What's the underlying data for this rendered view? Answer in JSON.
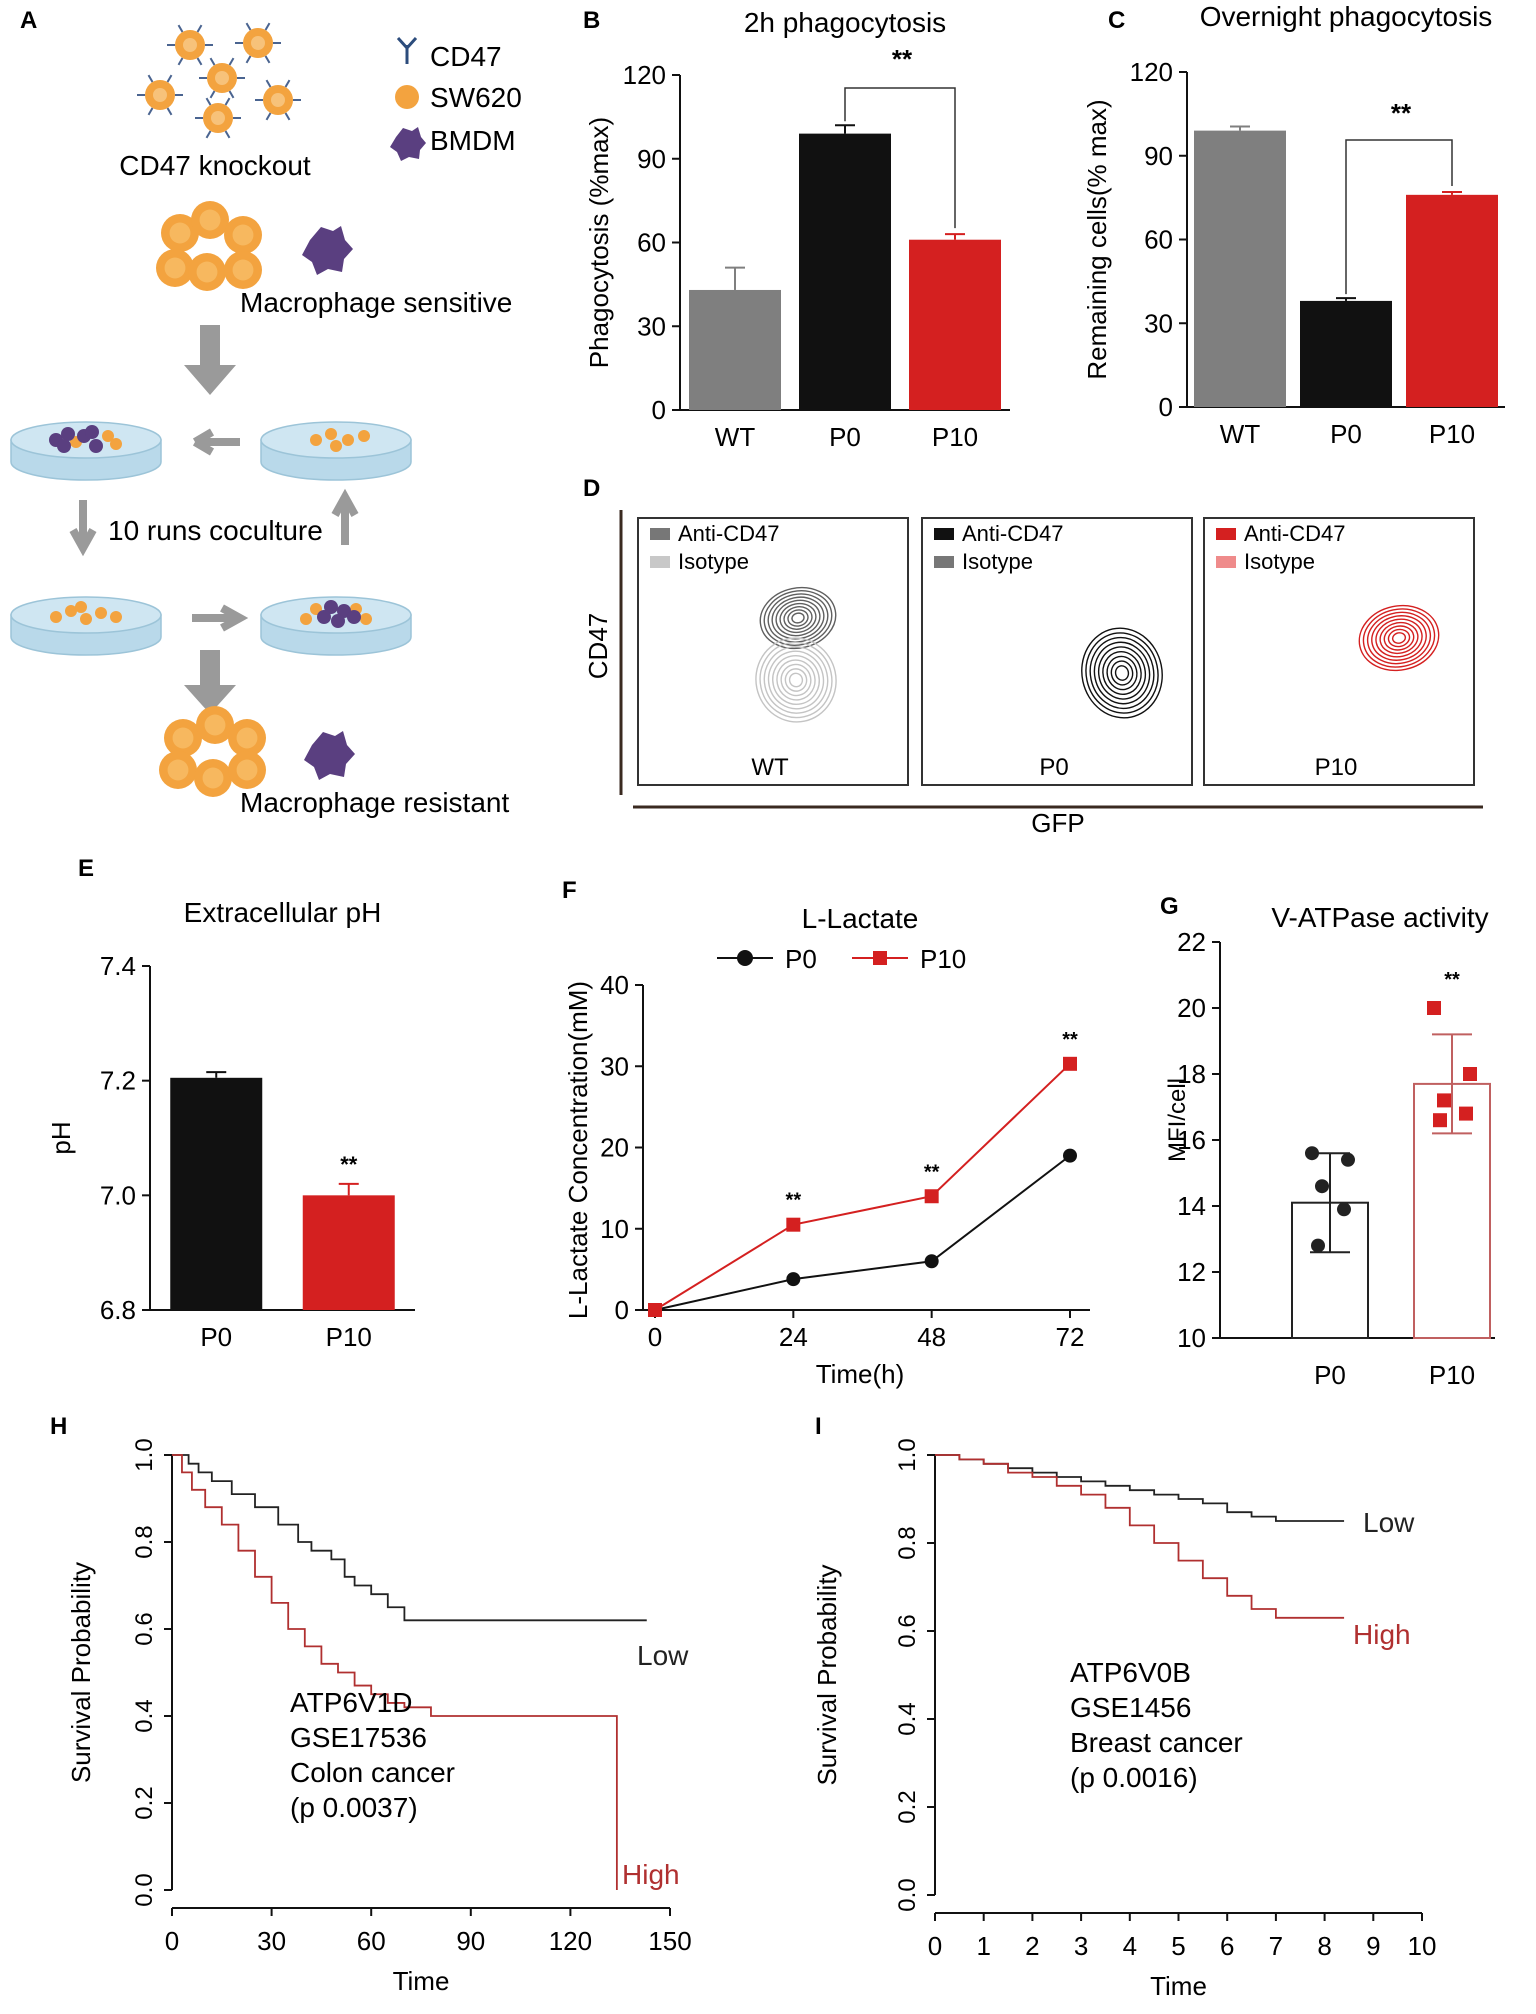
{
  "colors": {
    "gray": "#7f7f7f",
    "black": "#111111",
    "red": "#d42020",
    "lightgray": "#c8c8c8",
    "pink": "#ef8b8b",
    "orange": "#f3a33f",
    "purple": "#5a3f80",
    "dish": "#cfe6f2",
    "arrow": "#9a9a9a"
  },
  "panelA": {
    "letter": "A",
    "title": "CD47 knockout",
    "legend": [
      {
        "label": "CD47",
        "icon": "antibody-icon"
      },
      {
        "label": "SW620",
        "icon": "cell-icon"
      },
      {
        "label": "BMDM",
        "icon": "macrophage-icon"
      }
    ],
    "sensitive": "Macrophage sensitive",
    "coculture": "10 runs coculture",
    "resistant": "Macrophage resistant"
  },
  "chart_data": [
    {
      "panel": "B",
      "type": "bar",
      "title": "2h phagocytosis",
      "ylabel": "Phagocytosis (%max)",
      "xlabel": "",
      "categories": [
        "WT",
        "P0",
        "P10"
      ],
      "values": [
        43,
        99,
        61
      ],
      "errors": [
        8,
        3,
        2
      ],
      "colors": [
        "#7f7f7f",
        "#111111",
        "#d42020"
      ],
      "ylim": [
        0,
        120
      ],
      "yticks": [
        "0",
        "30",
        "60",
        "90",
        "120"
      ],
      "annotation": "**",
      "compare": [
        "P0",
        "P10"
      ]
    },
    {
      "panel": "C",
      "type": "bar",
      "title": "Overnight phagocytosis",
      "ylabel": "Remaining cells(% max)",
      "xlabel": "",
      "categories": [
        "WT",
        "P0",
        "P10"
      ],
      "values": [
        99,
        38,
        76
      ],
      "errors": [
        1.5,
        1,
        1
      ],
      "colors": [
        "#7f7f7f",
        "#111111",
        "#d42020"
      ],
      "ylim": [
        0,
        120
      ],
      "yticks": [
        "0",
        "30",
        "60",
        "90",
        "120"
      ],
      "annotation": "**",
      "compare": [
        "P0",
        "P10"
      ]
    },
    {
      "panel": "D",
      "type": "contour",
      "ylabel": "CD47",
      "xlabel": "GFP",
      "plots": [
        {
          "name": "WT",
          "legend": [
            "Anti-CD47",
            "Isotype"
          ],
          "legend_colors": [
            "#777777",
            "#c8c8c8"
          ]
        },
        {
          "name": "P0",
          "legend": [
            "Anti-CD47",
            "Isotype"
          ],
          "legend_colors": [
            "#111111",
            "#777777"
          ]
        },
        {
          "name": "P10",
          "legend": [
            "Anti-CD47",
            "Isotype"
          ],
          "legend_colors": [
            "#d42020",
            "#ef8b8b"
          ]
        }
      ]
    },
    {
      "panel": "E",
      "type": "bar",
      "title": "Extracellular pH",
      "ylabel": "pH",
      "xlabel": "",
      "categories": [
        "P0",
        "P10"
      ],
      "values": [
        7.205,
        7.0
      ],
      "errors": [
        0.01,
        0.02
      ],
      "colors": [
        "#111111",
        "#d42020"
      ],
      "ylim": [
        6.8,
        7.4
      ],
      "yticks": [
        "6.8",
        "7.0",
        "7.2",
        "7.4"
      ],
      "annotation": "**"
    },
    {
      "panel": "F",
      "type": "line",
      "title": "L-Lactate",
      "ylabel": "L-Lactate Concentration(mM)",
      "xlabel": "Time(h)",
      "x": [
        0,
        24,
        48,
        72
      ],
      "xticks": [
        "0",
        "24",
        "48",
        "72"
      ],
      "ylim": [
        0,
        40
      ],
      "yticks": [
        "0",
        "10",
        "20",
        "30",
        "40"
      ],
      "series": [
        {
          "name": "P0",
          "values": [
            0,
            3.8,
            6,
            19
          ],
          "color": "#111111",
          "marker": "circle"
        },
        {
          "name": "P10",
          "values": [
            0,
            10.5,
            14,
            30.3
          ],
          "color": "#d42020",
          "marker": "square"
        }
      ],
      "annotations": [
        "**",
        "**",
        "**"
      ]
    },
    {
      "panel": "G",
      "type": "bar",
      "title": "V-ATPase activity",
      "ylabel": "MFI/cell",
      "xlabel": "",
      "categories": [
        "P0",
        "P10"
      ],
      "values": [
        14.1,
        17.7
      ],
      "errors": [
        1.5,
        1.5
      ],
      "ylim": [
        10,
        22
      ],
      "yticks": [
        "10",
        "12",
        "14",
        "16",
        "18",
        "20",
        "22"
      ],
      "points": [
        [
          15.6,
          15.4,
          14.6,
          13.9,
          12.8
        ],
        [
          20.0,
          18.0,
          17.2,
          16.8,
          16.6
        ]
      ],
      "annotation": "**"
    },
    {
      "panel": "H",
      "type": "line",
      "subtype": "kaplan-meier",
      "ylabel": "Survival Probability",
      "xlabel": "Time",
      "xlim": [
        0,
        150
      ],
      "xticks": [
        "0",
        "30",
        "60",
        "90",
        "120",
        "150"
      ],
      "ylim": [
        0,
        1
      ],
      "yticks": [
        "0.0",
        "0.2",
        "0.4",
        "0.6",
        "0.8",
        "1.0"
      ],
      "series": [
        {
          "name": "Low",
          "color": "#222222",
          "x": [
            0,
            5,
            8,
            12,
            18,
            25,
            32,
            38,
            42,
            48,
            52,
            55,
            60,
            65,
            70,
            143
          ],
          "values": [
            1.0,
            0.98,
            0.96,
            0.94,
            0.91,
            0.88,
            0.84,
            0.8,
            0.78,
            0.76,
            0.72,
            0.7,
            0.68,
            0.65,
            0.62,
            0.62
          ]
        },
        {
          "name": "High",
          "color": "#b03030",
          "x": [
            0,
            3,
            6,
            10,
            15,
            20,
            25,
            30,
            35,
            40,
            45,
            50,
            55,
            60,
            65,
            70,
            78,
            90,
            100,
            110,
            120,
            133,
            134
          ],
          "values": [
            1.0,
            0.96,
            0.92,
            0.88,
            0.84,
            0.78,
            0.72,
            0.66,
            0.6,
            0.56,
            0.52,
            0.5,
            0.47,
            0.45,
            0.43,
            0.42,
            0.4,
            0.4,
            0.4,
            0.4,
            0.4,
            0.4,
            0.0
          ]
        }
      ],
      "annotation": [
        "ATP6V1D",
        "GSE17536",
        "Colon cancer",
        "(p 0.0037)"
      ]
    },
    {
      "panel": "I",
      "type": "line",
      "subtype": "kaplan-meier",
      "ylabel": "Survival Probability",
      "xlabel": "Time",
      "xlim": [
        0,
        10
      ],
      "xticks": [
        "0",
        "1",
        "2",
        "3",
        "4",
        "5",
        "6",
        "7",
        "8",
        "9",
        "10"
      ],
      "ylim": [
        0,
        1
      ],
      "yticks": [
        "0.0",
        "0.2",
        "0.4",
        "0.6",
        "0.8",
        "1.0"
      ],
      "series": [
        {
          "name": "Low",
          "color": "#222222",
          "x": [
            0,
            0.5,
            1,
            1.5,
            2,
            2.5,
            3,
            3.5,
            4,
            4.5,
            5,
            5.5,
            6,
            6.5,
            7,
            8.4
          ],
          "values": [
            1.0,
            0.99,
            0.98,
            0.97,
            0.96,
            0.95,
            0.94,
            0.93,
            0.92,
            0.91,
            0.9,
            0.89,
            0.87,
            0.86,
            0.85,
            0.85
          ]
        },
        {
          "name": "High",
          "color": "#b03030",
          "x": [
            0,
            0.5,
            1,
            1.5,
            2,
            2.5,
            3,
            3.5,
            4,
            4.5,
            5,
            5.5,
            6,
            6.5,
            7,
            8.4
          ],
          "values": [
            1.0,
            0.99,
            0.98,
            0.96,
            0.95,
            0.93,
            0.91,
            0.88,
            0.84,
            0.8,
            0.76,
            0.72,
            0.68,
            0.65,
            0.63,
            0.63
          ]
        }
      ],
      "annotation": [
        "ATP6V0B",
        "GSE1456",
        "Breast cancer",
        "(p 0.0016)"
      ]
    }
  ]
}
